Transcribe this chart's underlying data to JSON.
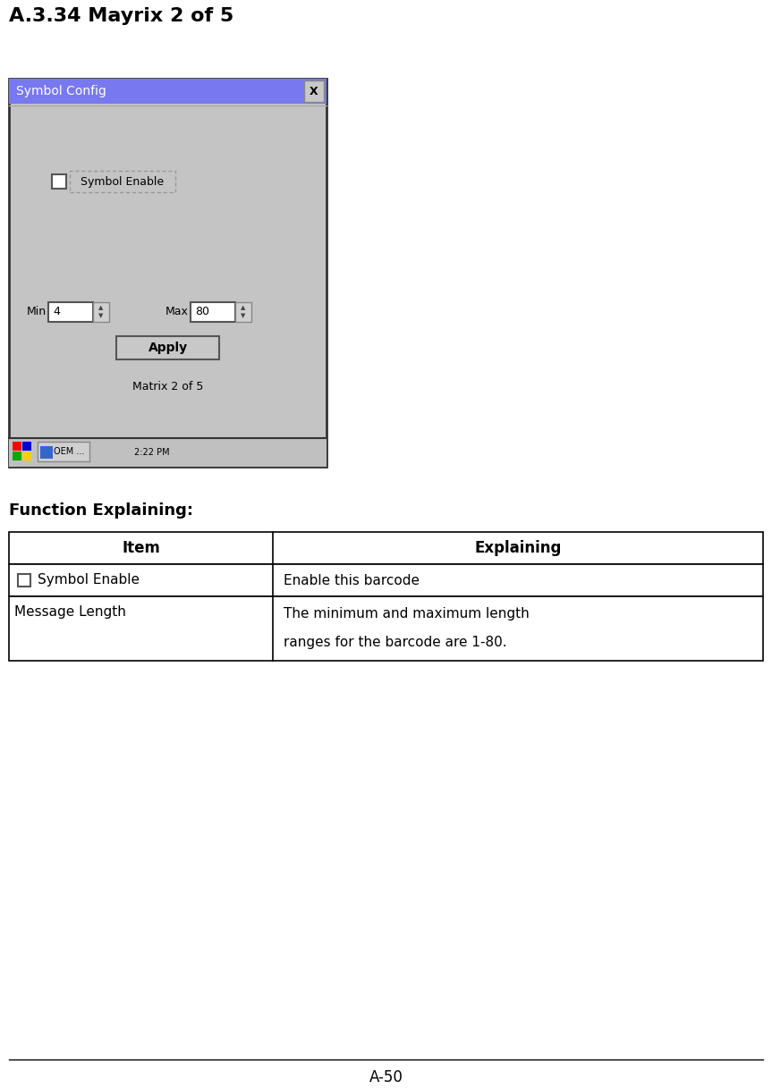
{
  "title": "A.3.34 Mayrix 2 of 5",
  "title_fontsize": 16,
  "bg_color": "#ffffff",
  "window_title": "Symbol Config",
  "window_title_bg": "#7878f0",
  "window_title_color": "#ffffff",
  "window_bg": "#c8c8c8",
  "checkbox_label": "Symbol Enable",
  "min_label": "Min",
  "min_value": "4",
  "max_label": "Max",
  "max_value": "80",
  "apply_label": "Apply",
  "matrix_label": "Matrix 2 of 5",
  "function_explaining": "Function Explaining:",
  "table_headers": [
    "Item",
    "Explaining"
  ],
  "table_row1_col2": "Enable this barcode",
  "table_row2_col1": "Message Length",
  "table_row2_col2_line1": "The minimum and maximum length",
  "table_row2_col2_line2": "ranges for the barcode are 1-80.",
  "footer_text": "A-50",
  "oem_text": "OEM ...",
  "time_text": "2:22 PM"
}
